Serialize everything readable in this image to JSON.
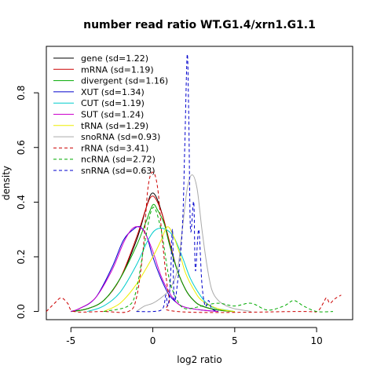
{
  "chart_data": {
    "type": "line",
    "title": "number read ratio WT.G1.4/xrn1.G1.1",
    "xlabel": "log2 ratio",
    "ylabel": "density",
    "xlim": [
      -6.5,
      12.2
    ],
    "ylim": [
      -0.03,
      0.97
    ],
    "xticks": [
      -5,
      0,
      5,
      10
    ],
    "yticks": [
      0.0,
      0.2,
      0.4,
      0.6,
      0.8
    ],
    "legend_position": "top-left",
    "grid": false,
    "series": [
      {
        "name": "gene (sd=1.22)",
        "color": "#000000",
        "dash": false,
        "points": [
          [
            -5,
            0
          ],
          [
            -4,
            0.01
          ],
          [
            -3,
            0.04
          ],
          [
            -2,
            0.12
          ],
          [
            -1,
            0.26
          ],
          [
            -0.4,
            0.38
          ],
          [
            -0.1,
            0.43
          ],
          [
            0.2,
            0.42
          ],
          [
            0.6,
            0.35
          ],
          [
            1,
            0.25
          ],
          [
            1.5,
            0.15
          ],
          [
            2,
            0.08
          ],
          [
            2.5,
            0.04
          ],
          [
            3,
            0.02
          ],
          [
            4,
            0.005
          ],
          [
            5,
            0
          ]
        ]
      },
      {
        "name": "mRNA (sd=1.19)",
        "color": "#cc0000",
        "dash": false,
        "points": [
          [
            -5,
            0
          ],
          [
            -4,
            0.01
          ],
          [
            -3,
            0.04
          ],
          [
            -2,
            0.12
          ],
          [
            -1,
            0.27
          ],
          [
            -0.4,
            0.38
          ],
          [
            -0.1,
            0.42
          ],
          [
            0.2,
            0.41
          ],
          [
            0.6,
            0.35
          ],
          [
            1,
            0.26
          ],
          [
            1.5,
            0.15
          ],
          [
            2,
            0.08
          ],
          [
            2.5,
            0.04
          ],
          [
            3,
            0.02
          ],
          [
            4,
            0.005
          ],
          [
            5,
            0
          ]
        ]
      },
      {
        "name": "divergent (sd=1.16)",
        "color": "#00aa00",
        "dash": false,
        "points": [
          [
            -5,
            0
          ],
          [
            -4,
            0.01
          ],
          [
            -3,
            0.04
          ],
          [
            -2,
            0.12
          ],
          [
            -1,
            0.24
          ],
          [
            -0.4,
            0.33
          ],
          [
            0,
            0.39
          ],
          [
            0.3,
            0.37
          ],
          [
            0.7,
            0.32
          ],
          [
            1,
            0.25
          ],
          [
            1.5,
            0.15
          ],
          [
            2,
            0.08
          ],
          [
            2.5,
            0.04
          ],
          [
            3,
            0.02
          ],
          [
            4,
            0.005
          ],
          [
            5,
            0
          ]
        ]
      },
      {
        "name": "XUT (sd=1.34)",
        "color": "#0000cc",
        "dash": false,
        "points": [
          [
            -5,
            0
          ],
          [
            -4.5,
            0.01
          ],
          [
            -3.5,
            0.05
          ],
          [
            -2.5,
            0.16
          ],
          [
            -1.8,
            0.26
          ],
          [
            -1.2,
            0.3
          ],
          [
            -0.8,
            0.31
          ],
          [
            -0.4,
            0.28
          ],
          [
            0,
            0.2
          ],
          [
            0.5,
            0.12
          ],
          [
            1,
            0.06
          ],
          [
            1.5,
            0.03
          ],
          [
            2,
            0.015
          ],
          [
            3,
            0.005
          ],
          [
            4,
            0
          ]
        ]
      },
      {
        "name": "CUT (sd=1.19)",
        "color": "#00cccc",
        "dash": false,
        "points": [
          [
            -4,
            0
          ],
          [
            -3,
            0.02
          ],
          [
            -2,
            0.07
          ],
          [
            -1,
            0.17
          ],
          [
            -0.3,
            0.26
          ],
          [
            0.2,
            0.3
          ],
          [
            0.8,
            0.3
          ],
          [
            1.3,
            0.27
          ],
          [
            1.8,
            0.2
          ],
          [
            2.3,
            0.12
          ],
          [
            3,
            0.05
          ],
          [
            3.5,
            0.02
          ],
          [
            4,
            0.01
          ],
          [
            5,
            0
          ]
        ]
      },
      {
        "name": "SUT (sd=1.24)",
        "color": "#cc00cc",
        "dash": false,
        "points": [
          [
            -5,
            0
          ],
          [
            -4.5,
            0.01
          ],
          [
            -3.5,
            0.05
          ],
          [
            -2.5,
            0.15
          ],
          [
            -1.8,
            0.25
          ],
          [
            -1.3,
            0.3
          ],
          [
            -0.9,
            0.31
          ],
          [
            -0.5,
            0.29
          ],
          [
            0,
            0.22
          ],
          [
            0.5,
            0.13
          ],
          [
            1,
            0.07
          ],
          [
            1.5,
            0.03
          ],
          [
            2,
            0.015
          ],
          [
            3,
            0.005
          ],
          [
            4,
            0
          ]
        ]
      },
      {
        "name": "tRNA (sd=1.29)",
        "color": "#eeee00",
        "dash": false,
        "points": [
          [
            -3,
            0
          ],
          [
            -2,
            0.03
          ],
          [
            -1,
            0.1
          ],
          [
            0,
            0.2
          ],
          [
            0.5,
            0.26
          ],
          [
            0.9,
            0.31
          ],
          [
            1.3,
            0.27
          ],
          [
            1.7,
            0.2
          ],
          [
            2,
            0.14
          ],
          [
            2.5,
            0.08
          ],
          [
            3,
            0.04
          ],
          [
            4,
            0.01
          ],
          [
            5,
            0
          ]
        ]
      },
      {
        "name": "snoRNA (sd=0.93)",
        "color": "#aaaaaa",
        "dash": false,
        "points": [
          [
            -1,
            0
          ],
          [
            -0.5,
            0.02
          ],
          [
            0,
            0.03
          ],
          [
            0.5,
            0.05
          ],
          [
            1,
            0.08
          ],
          [
            1.5,
            0.15
          ],
          [
            1.8,
            0.3
          ],
          [
            2.1,
            0.45
          ],
          [
            2.4,
            0.5
          ],
          [
            2.7,
            0.45
          ],
          [
            3,
            0.3
          ],
          [
            3.3,
            0.17
          ],
          [
            3.6,
            0.08
          ],
          [
            4,
            0.04
          ],
          [
            4.5,
            0.02
          ],
          [
            5,
            0.01
          ],
          [
            6,
            0
          ]
        ]
      },
      {
        "name": "rRNA (sd=3.41)",
        "color": "#cc0000",
        "dash": true,
        "points": [
          [
            -6.5,
            0
          ],
          [
            -6,
            0.03
          ],
          [
            -5.6,
            0.05
          ],
          [
            -5.2,
            0.03
          ],
          [
            -4.8,
            0
          ],
          [
            -3,
            0
          ],
          [
            -1.5,
            0
          ],
          [
            -1,
            0.05
          ],
          [
            -0.6,
            0.22
          ],
          [
            -0.3,
            0.45
          ],
          [
            0,
            0.51
          ],
          [
            0.3,
            0.45
          ],
          [
            0.6,
            0.25
          ],
          [
            1,
            0.05
          ],
          [
            1.5,
            0
          ],
          [
            9,
            0
          ],
          [
            10,
            0
          ],
          [
            10.4,
            0.03
          ],
          [
            10.6,
            0.05
          ],
          [
            10.8,
            0.03
          ],
          [
            11,
            0.04
          ],
          [
            11.2,
            0.05
          ],
          [
            11.5,
            0.06
          ]
        ]
      },
      {
        "name": "ncRNA (sd=2.72)",
        "color": "#00aa00",
        "dash": true,
        "points": [
          [
            -3,
            0
          ],
          [
            -1.5,
            0.02
          ],
          [
            -1,
            0.08
          ],
          [
            -0.5,
            0.25
          ],
          [
            0,
            0.38
          ],
          [
            0.5,
            0.3
          ],
          [
            1,
            0.12
          ],
          [
            1.5,
            0.04
          ],
          [
            2,
            0.01
          ],
          [
            3,
            0.02
          ],
          [
            4,
            0.03
          ],
          [
            5,
            0.02
          ],
          [
            6,
            0.03
          ],
          [
            7,
            0.005
          ],
          [
            8,
            0.02
          ],
          [
            8.6,
            0.04
          ],
          [
            9.2,
            0.02
          ],
          [
            10,
            0
          ],
          [
            11,
            0
          ]
        ]
      },
      {
        "name": "snRNA (sd=0.63)",
        "color": "#0000cc",
        "dash": true,
        "points": [
          [
            -1,
            0
          ],
          [
            0,
            0
          ],
          [
            0.6,
            0.01
          ],
          [
            0.8,
            0.06
          ],
          [
            0.9,
            0.02
          ],
          [
            1,
            0.05
          ],
          [
            1.1,
            0.15
          ],
          [
            1.2,
            0.3
          ],
          [
            1.3,
            0.05
          ],
          [
            1.5,
            0.1
          ],
          [
            1.8,
            0.3
          ],
          [
            1.95,
            0.6
          ],
          [
            2.1,
            0.94
          ],
          [
            2.2,
            0.7
          ],
          [
            2.3,
            0.3
          ],
          [
            2.5,
            0.4
          ],
          [
            2.6,
            0.15
          ],
          [
            2.8,
            0.3
          ],
          [
            3,
            0.1
          ],
          [
            3.2,
            0.02
          ],
          [
            3.4,
            0.04
          ],
          [
            3.6,
            0.01
          ],
          [
            4,
            0
          ]
        ]
      }
    ]
  }
}
